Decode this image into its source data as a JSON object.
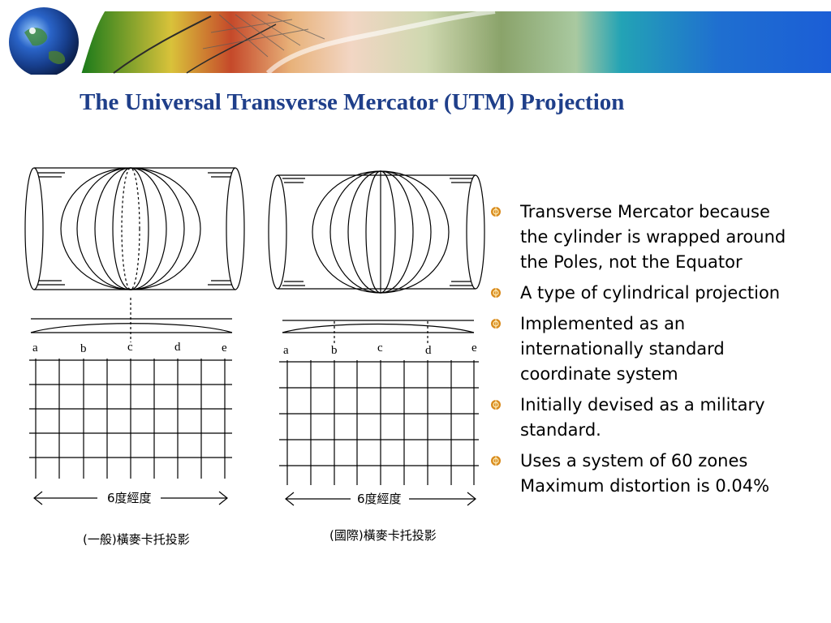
{
  "slide": {
    "title": "The Universal Transverse Mercator (UTM) Projection"
  },
  "figures": {
    "left": {
      "letters": [
        "a",
        "b",
        "c",
        "d",
        "e"
      ],
      "width_label": "6度經度",
      "caption": "(一般)橫麥卡托投影"
    },
    "right": {
      "letters": [
        "a",
        "b",
        "c",
        "d",
        "e"
      ],
      "width_label": "6度經度",
      "caption": "(國際)橫麥卡托投影"
    }
  },
  "bullets": [
    {
      "lines": [
        "Transverse Mercator because",
        "the cylinder is wrapped around",
        "the Poles, not the Equator"
      ]
    },
    {
      "lines": [
        "A type of cylindrical projection"
      ]
    },
    {
      "lines": [
        "Implemented as an",
        "internationally standard",
        "coordinate system"
      ]
    },
    {
      "lines": [
        "Initially devised as a military",
        "standard."
      ]
    },
    {
      "lines": [
        "Uses a system of 60 zones",
        "Maximum distortion is 0.04%"
      ]
    }
  ],
  "colors": {
    "title": "#1f3f8a",
    "bullet": "#d98b1e",
    "banner_water": "#1f6fd0"
  },
  "icons": {
    "logo": "globe-icon",
    "bullet": "orange-target-bullet-icon"
  }
}
